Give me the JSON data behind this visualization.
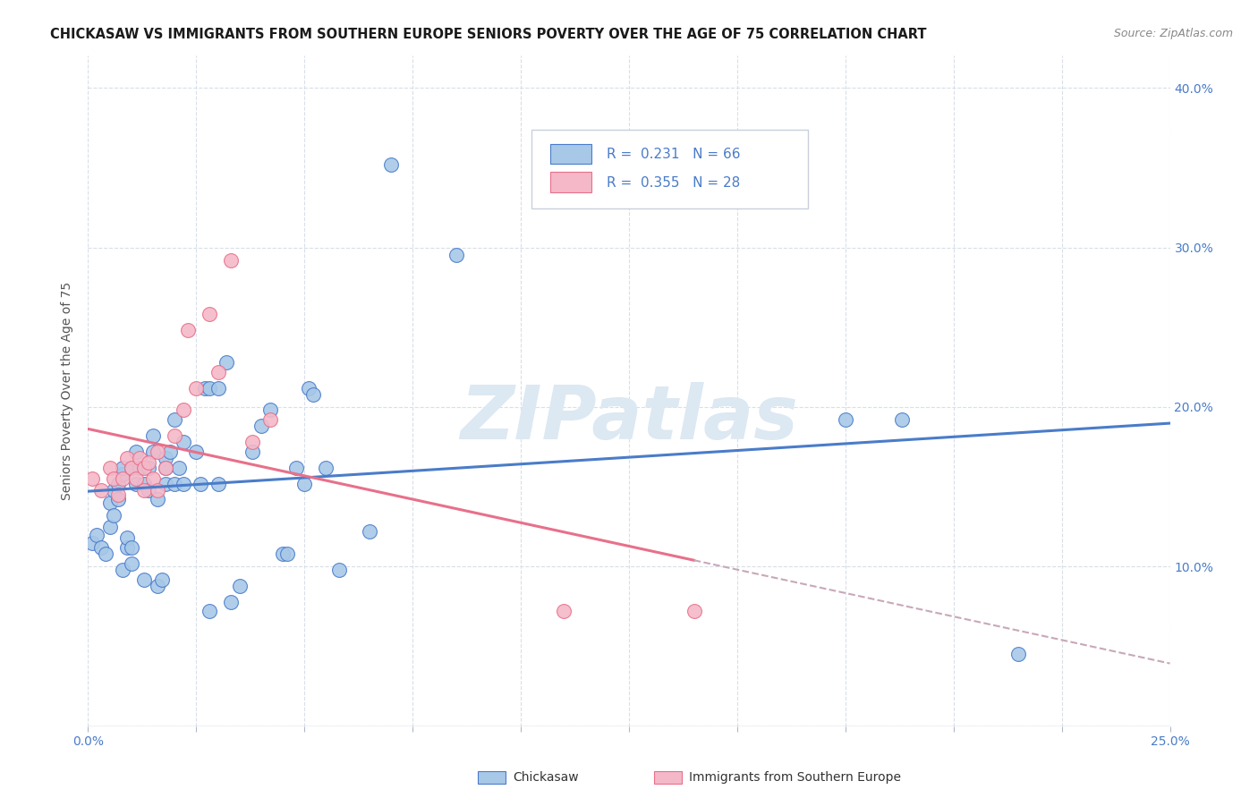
{
  "title": "CHICKASAW VS IMMIGRANTS FROM SOUTHERN EUROPE SENIORS POVERTY OVER THE AGE OF 75 CORRELATION CHART",
  "source": "Source: ZipAtlas.com",
  "ylabel": "Seniors Poverty Over the Age of 75",
  "xlim": [
    0,
    0.25
  ],
  "ylim": [
    0,
    0.42
  ],
  "xticks": [
    0.0,
    0.025,
    0.05,
    0.075,
    0.1,
    0.125,
    0.15,
    0.175,
    0.2,
    0.225,
    0.25
  ],
  "yticks": [
    0.0,
    0.1,
    0.2,
    0.3,
    0.4
  ],
  "yticklabels": [
    "",
    "10.0%",
    "20.0%",
    "30.0%",
    "40.0%"
  ],
  "R_blue": 0.231,
  "N_blue": 66,
  "R_pink": 0.355,
  "N_pink": 28,
  "color_blue": "#a8c8e8",
  "color_pink": "#f4b8c8",
  "line_blue": "#4a7cc9",
  "line_pink": "#e8708a",
  "line_dashed_color": "#c8a8b8",
  "background": "#ffffff",
  "grid_color": "#d8dfe8",
  "watermark": "ZIPatlas",
  "watermark_color": "#dce8f2",
  "blue_points": [
    [
      0.001,
      0.115
    ],
    [
      0.002,
      0.12
    ],
    [
      0.003,
      0.112
    ],
    [
      0.004,
      0.108
    ],
    [
      0.005,
      0.14
    ],
    [
      0.005,
      0.125
    ],
    [
      0.006,
      0.148
    ],
    [
      0.006,
      0.132
    ],
    [
      0.007,
      0.142
    ],
    [
      0.007,
      0.152
    ],
    [
      0.008,
      0.158
    ],
    [
      0.008,
      0.162
    ],
    [
      0.008,
      0.098
    ],
    [
      0.009,
      0.112
    ],
    [
      0.009,
      0.118
    ],
    [
      0.01,
      0.162
    ],
    [
      0.01,
      0.112
    ],
    [
      0.01,
      0.102
    ],
    [
      0.011,
      0.172
    ],
    [
      0.011,
      0.152
    ],
    [
      0.012,
      0.162
    ],
    [
      0.013,
      0.152
    ],
    [
      0.013,
      0.092
    ],
    [
      0.014,
      0.162
    ],
    [
      0.014,
      0.148
    ],
    [
      0.015,
      0.182
    ],
    [
      0.015,
      0.172
    ],
    [
      0.016,
      0.142
    ],
    [
      0.016,
      0.088
    ],
    [
      0.017,
      0.092
    ],
    [
      0.018,
      0.168
    ],
    [
      0.018,
      0.162
    ],
    [
      0.018,
      0.152
    ],
    [
      0.019,
      0.172
    ],
    [
      0.02,
      0.192
    ],
    [
      0.02,
      0.152
    ],
    [
      0.021,
      0.162
    ],
    [
      0.022,
      0.178
    ],
    [
      0.022,
      0.152
    ],
    [
      0.025,
      0.172
    ],
    [
      0.026,
      0.152
    ],
    [
      0.027,
      0.212
    ],
    [
      0.028,
      0.212
    ],
    [
      0.028,
      0.072
    ],
    [
      0.03,
      0.212
    ],
    [
      0.03,
      0.152
    ],
    [
      0.032,
      0.228
    ],
    [
      0.033,
      0.078
    ],
    [
      0.035,
      0.088
    ],
    [
      0.038,
      0.172
    ],
    [
      0.04,
      0.188
    ],
    [
      0.042,
      0.198
    ],
    [
      0.045,
      0.108
    ],
    [
      0.046,
      0.108
    ],
    [
      0.048,
      0.162
    ],
    [
      0.05,
      0.152
    ],
    [
      0.051,
      0.212
    ],
    [
      0.052,
      0.208
    ],
    [
      0.055,
      0.162
    ],
    [
      0.058,
      0.098
    ],
    [
      0.065,
      0.122
    ],
    [
      0.07,
      0.352
    ],
    [
      0.085,
      0.295
    ],
    [
      0.175,
      0.192
    ],
    [
      0.188,
      0.192
    ],
    [
      0.215,
      0.045
    ]
  ],
  "pink_points": [
    [
      0.001,
      0.155
    ],
    [
      0.003,
      0.148
    ],
    [
      0.005,
      0.162
    ],
    [
      0.006,
      0.155
    ],
    [
      0.007,
      0.145
    ],
    [
      0.008,
      0.155
    ],
    [
      0.009,
      0.168
    ],
    [
      0.01,
      0.162
    ],
    [
      0.011,
      0.155
    ],
    [
      0.012,
      0.168
    ],
    [
      0.013,
      0.162
    ],
    [
      0.013,
      0.148
    ],
    [
      0.014,
      0.165
    ],
    [
      0.015,
      0.155
    ],
    [
      0.016,
      0.172
    ],
    [
      0.016,
      0.148
    ],
    [
      0.018,
      0.162
    ],
    [
      0.02,
      0.182
    ],
    [
      0.022,
      0.198
    ],
    [
      0.023,
      0.248
    ],
    [
      0.025,
      0.212
    ],
    [
      0.028,
      0.258
    ],
    [
      0.03,
      0.222
    ],
    [
      0.033,
      0.292
    ],
    [
      0.038,
      0.178
    ],
    [
      0.042,
      0.192
    ],
    [
      0.11,
      0.072
    ],
    [
      0.14,
      0.072
    ]
  ],
  "title_fontsize": 10.5,
  "source_fontsize": 9,
  "axis_label_fontsize": 10,
  "tick_fontsize": 10,
  "legend_fontsize": 11
}
